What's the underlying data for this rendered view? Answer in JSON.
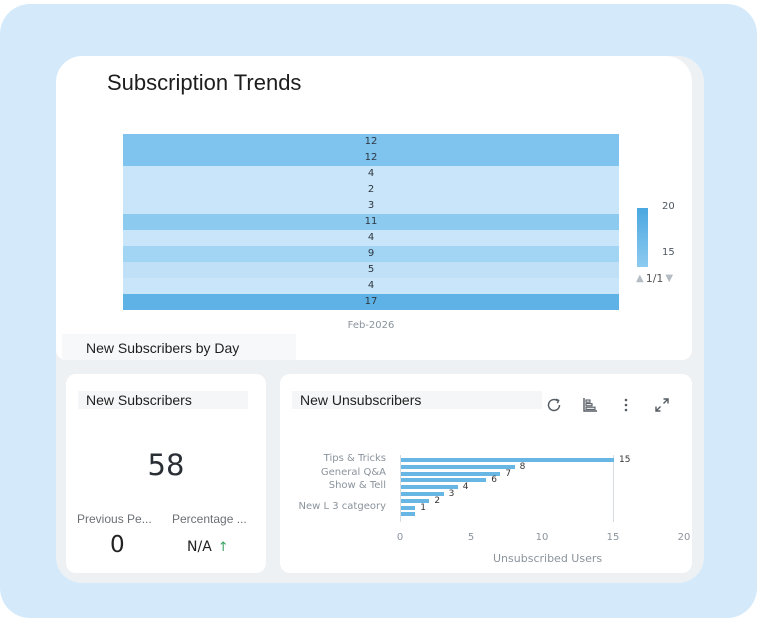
{
  "dashboard": {
    "title": "Subscription Trends"
  },
  "heatmap": {
    "subtitle": "New Subscribers by Day",
    "x_label": "Feb-2026",
    "rows": [
      {
        "value": "12",
        "color": "#7fc4ee"
      },
      {
        "value": "12",
        "color": "#7fc4ee"
      },
      {
        "value": "4",
        "color": "#c9e5f9"
      },
      {
        "value": "2",
        "color": "#c9e5f9"
      },
      {
        "value": "3",
        "color": "#c9e5f9"
      },
      {
        "value": "11",
        "color": "#8ccaf0"
      },
      {
        "value": "4",
        "color": "#c9e5f9"
      },
      {
        "value": "9",
        "color": "#a2d4f4"
      },
      {
        "value": "5",
        "color": "#c0e0f7"
      },
      {
        "value": "4",
        "color": "#c9e5f9"
      },
      {
        "value": "17",
        "color": "#5eb2e6"
      }
    ],
    "legend": {
      "max_label": "20",
      "min_label": "15",
      "pager": "1/1"
    }
  },
  "new_subscribers": {
    "title": "New Subscribers",
    "total": "58",
    "previous_label": "Previous Pe...",
    "previous_value": "0",
    "percentage_label": "Percentage ...",
    "percentage_value": "N/A"
  },
  "new_unsubscribers": {
    "title": "New Unsubscribers",
    "toolbar": [
      "refresh-icon",
      "chart-type-icon",
      "more-vertical-icon",
      "expand-icon"
    ]
  },
  "chart_data": {
    "type": "bar",
    "orientation": "horizontal",
    "categories": [
      "Tips & Tricks",
      "",
      "General Q&A",
      "",
      "Show & Tell",
      "",
      "",
      "New L 3 catgeory",
      ""
    ],
    "values": [
      15,
      8,
      7,
      6,
      4,
      3,
      2,
      1,
      1
    ],
    "data_labels": [
      "15",
      "8",
      "7",
      "6",
      "4",
      "3",
      "2",
      "1",
      ""
    ],
    "xlabel": "Unsubscribed Users",
    "xlim": [
      0,
      20
    ],
    "xticks": [
      "0",
      "5",
      "10",
      "15",
      "20"
    ],
    "bar_color": "#68b6e3",
    "grid": false
  }
}
